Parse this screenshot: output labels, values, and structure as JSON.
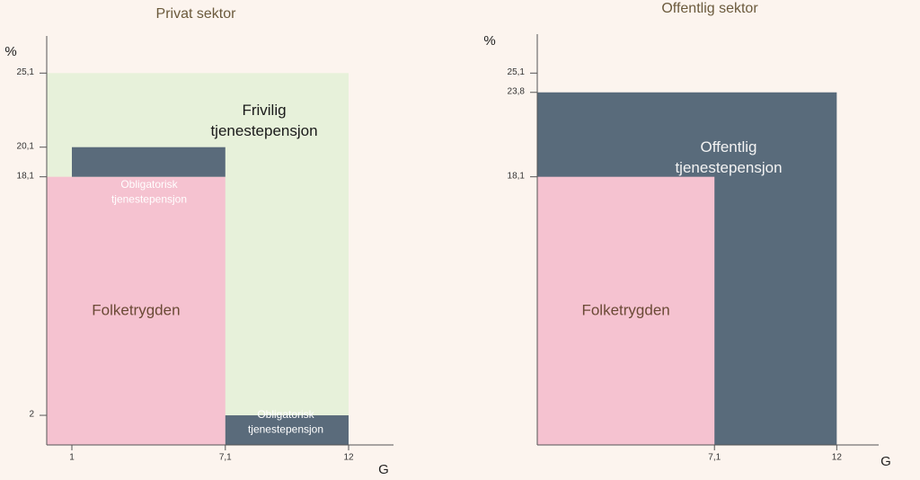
{
  "chart_data": [
    {
      "type": "blocks",
      "title": "Privat sektor",
      "ylabel": "%",
      "xlabel": "G",
      "xlim": [
        0,
        13.5
      ],
      "ylim": [
        0,
        27
      ],
      "xticks": [
        1,
        {
          "value": 7.1,
          "label": "7,1"
        },
        12
      ],
      "yticks": [
        2,
        {
          "value": 18.1,
          "label": "18,1"
        },
        {
          "value": 20.1,
          "label": "20,1"
        },
        {
          "value": 25.1,
          "label": "25,1"
        }
      ],
      "regions": [
        {
          "label": [
            "Frivilig",
            "tjenestepensjon"
          ],
          "color": "#e7f1da",
          "text_color": "#1a1a1a",
          "x": [
            0,
            12
          ],
          "y": [
            0,
            25.1
          ]
        },
        {
          "label": [
            "Folketrygden"
          ],
          "color": "#f5c2d0",
          "text_color": "#6b4a36",
          "x": [
            0,
            7.1
          ],
          "y": [
            0,
            18.1
          ]
        },
        {
          "label": [
            "Obligatorisk",
            "tjenestepensjon"
          ],
          "color": "#5a6b7b",
          "text_color": "#ffffff",
          "x": [
            1,
            7.1
          ],
          "y": [
            18.1,
            20.1
          ]
        },
        {
          "label": [
            "Obligatorisk",
            "tjenestepensjon"
          ],
          "color": "#5a6b7b",
          "text_color": "#ffffff",
          "x": [
            7.1,
            12
          ],
          "y": [
            0,
            2
          ]
        }
      ]
    },
    {
      "type": "blocks",
      "title": "Offentlig sektor",
      "ylabel": "%",
      "xlabel": "G",
      "xlim": [
        0,
        13.5
      ],
      "ylim": [
        0,
        27
      ],
      "xticks": [
        {
          "value": 7.1,
          "label": "7,1"
        },
        12
      ],
      "yticks": [
        {
          "value": 18.1,
          "label": "18,1"
        },
        {
          "value": 23.8,
          "label": "23,8"
        },
        {
          "value": 25.1,
          "label": "25,1"
        }
      ],
      "regions": [
        {
          "label": [
            "Offentlig",
            "tjenestepensjon"
          ],
          "color": "#596b7b",
          "text_color": "#f3f3f3",
          "x": [
            0,
            12
          ],
          "y": [
            0,
            23.8
          ]
        },
        {
          "label": [
            "Folketrygden"
          ],
          "color": "#f5c2d0",
          "text_color": "#6b4a36",
          "x": [
            0,
            7.1
          ],
          "y": [
            0,
            18.1
          ]
        }
      ]
    }
  ]
}
